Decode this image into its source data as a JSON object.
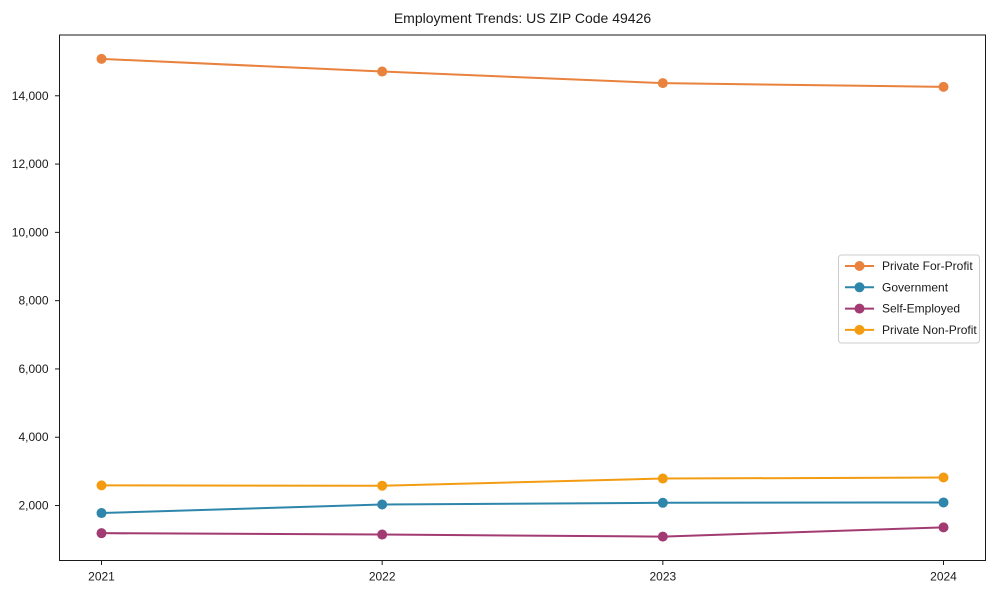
{
  "chart_data": {
    "type": "line",
    "title": "Employment Trends: US ZIP Code 49426",
    "categories": [
      "2021",
      "2022",
      "2023",
      "2024"
    ],
    "series": [
      {
        "name": "Private For-Profit",
        "color": "#E8823D",
        "values": [
          15080,
          14710,
          14370,
          14260
        ]
      },
      {
        "name": "Government",
        "color": "#2E86AB",
        "values": [
          1780,
          2030,
          2080,
          2090
        ]
      },
      {
        "name": "Self-Employed",
        "color": "#A23B72",
        "values": [
          1190,
          1150,
          1090,
          1360
        ]
      },
      {
        "name": "Private Non-Profit",
        "color": "#F39C12",
        "values": [
          2590,
          2580,
          2790,
          2820
        ]
      }
    ],
    "xlabel": "",
    "ylabel": "",
    "ylim": [
      390,
      15780
    ],
    "yticks": [
      2000,
      4000,
      6000,
      8000,
      10000,
      12000,
      14000
    ],
    "ytick_labels": [
      "2,000",
      "4,000",
      "6,000",
      "8,000",
      "10,000",
      "12,000",
      "14,000"
    ],
    "grid": false,
    "legend_position": "center-right",
    "marker": "circle",
    "frame_color": "#1a1a1a",
    "legend_border_color": "#cccccc",
    "background_color": "#ffffff"
  }
}
